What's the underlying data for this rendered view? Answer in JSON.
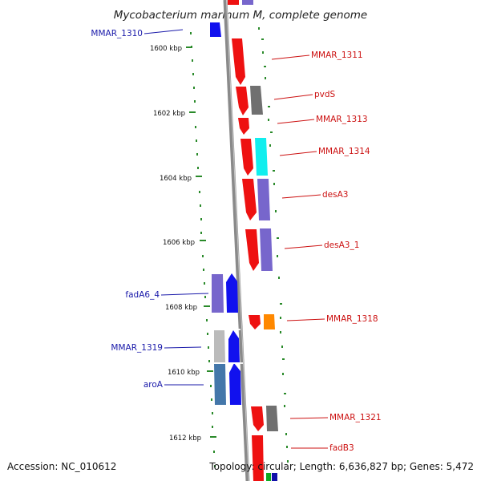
{
  "title": "Mycobacterium marinum M, complete genome",
  "footer": {
    "accession": "Accession: NC_010612",
    "topology": "Topology: circular; Length: 6,636,827 bp; Genes: 5,472"
  },
  "ticks": [
    "1600 kbp",
    "1602 kbp",
    "1604 kbp",
    "1606 kbp",
    "1608 kbp",
    "1610 kbp",
    "1612 kbp"
  ],
  "left_labels": [
    "MMAR_1310",
    "fadA6_4",
    "MMAR_1319",
    "aroA"
  ],
  "right_labels": [
    "MMAR_1311",
    "pvdS",
    "MMAR_1313",
    "MMAR_1314",
    "desA3",
    "desA3_1",
    "MMAR_1318",
    "MMAR_1321",
    "fadB3"
  ],
  "colors": {
    "backbone": "#8a8a8a",
    "tick": "#2a8a2a",
    "left_label": "#1a1aaa",
    "right_label": "#cc1111",
    "red": "#ee1111",
    "blue": "#1111ee",
    "violet": "#7766cc",
    "grey": "#707070",
    "lightgrey": "#bbbbbb",
    "cyan": "#11eeee",
    "orange": "#ff8800",
    "steel": "#4477aa"
  }
}
